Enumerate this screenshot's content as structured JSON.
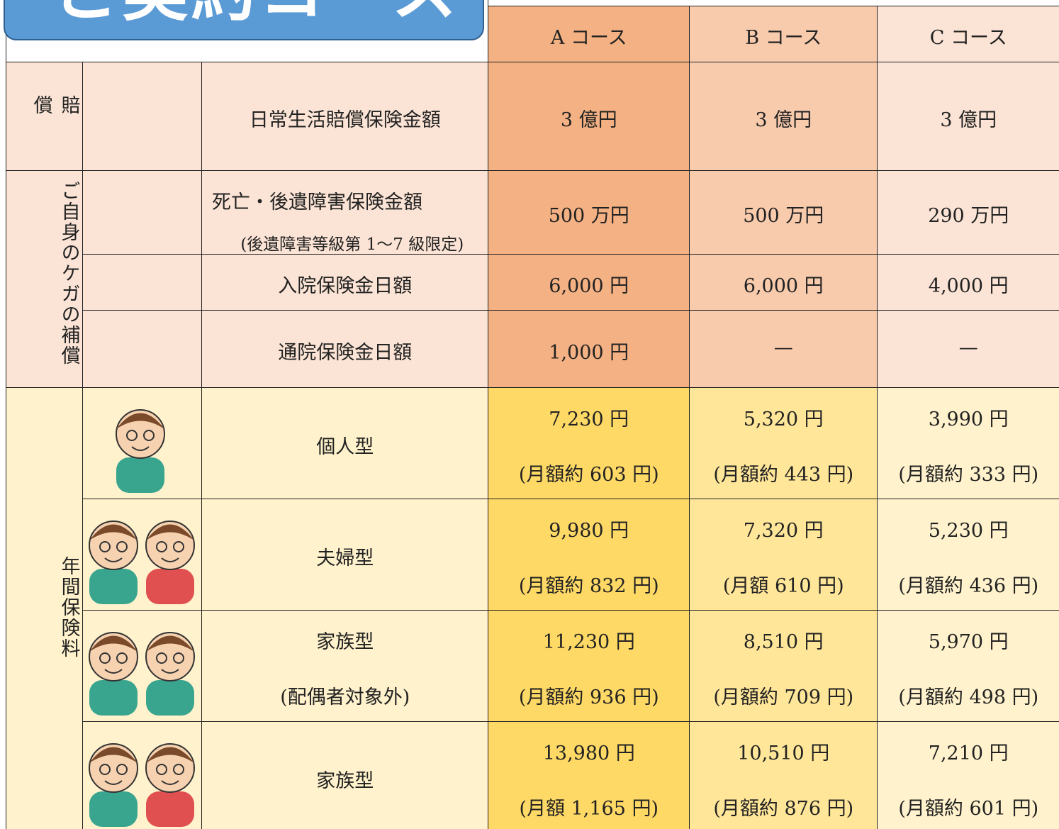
{
  "banner": {
    "title": "ご契約コース"
  },
  "table": {
    "headers": [
      "A コース",
      "B コース",
      "C コース"
    ],
    "sections": [
      {
        "label": "賠償",
        "rows": [
          {
            "item": "日常生活賠償保険金額",
            "values": [
              "3 億円",
              "3 億円",
              "3 億円"
            ]
          }
        ]
      },
      {
        "label": "ご自身のケガの補償",
        "rows": [
          {
            "item": "死亡・後遺障害保険金額",
            "note": "(後遺障害等級第 1～7 級限定)",
            "values": [
              "500 万円",
              "500 万円",
              "290 万円"
            ]
          },
          {
            "item": "入院保険金日額",
            "values": [
              "6,000 円",
              "6,000 円",
              "4,000 円"
            ]
          },
          {
            "item": "通院保険金日額",
            "values": [
              "1,000 円",
              "—",
              "—"
            ]
          }
        ]
      },
      {
        "label": "年間保険料",
        "rows": [
          {
            "item": "個人型",
            "values": [
              {
                "amount": "7,230 円",
                "monthly": "(月額約 603 円)"
              },
              {
                "amount": "5,320 円",
                "monthly": "(月額約 443 円)"
              },
              {
                "amount": "3,990 円",
                "monthly": "(月額約 333 円)"
              }
            ]
          },
          {
            "item": "夫婦型",
            "values": [
              {
                "amount": "9,980 円",
                "monthly": "(月額約 832 円)"
              },
              {
                "amount": "7,320 円",
                "monthly": "(月額 610 円)"
              },
              {
                "amount": "5,230 円",
                "monthly": "(月額約 436 円)"
              }
            ]
          },
          {
            "item": "家族型",
            "note": "(配偶者対象外)",
            "values": [
              {
                "amount": "11,230 円",
                "monthly": "(月額約 936 円)"
              },
              {
                "amount": "8,510 円",
                "monthly": "(月額約 709 円)"
              },
              {
                "amount": "5,970 円",
                "monthly": "(月額約 498 円)"
              }
            ]
          },
          {
            "item": "家族型",
            "values": [
              {
                "amount": "13,980 円",
                "monthly": "(月額 1,165 円)"
              },
              {
                "amount": "10,510 円",
                "monthly": "(月額約 876 円)"
              },
              {
                "amount": "7,210 円",
                "monthly": "(月額約 601 円)"
              }
            ]
          }
        ]
      }
    ]
  }
}
